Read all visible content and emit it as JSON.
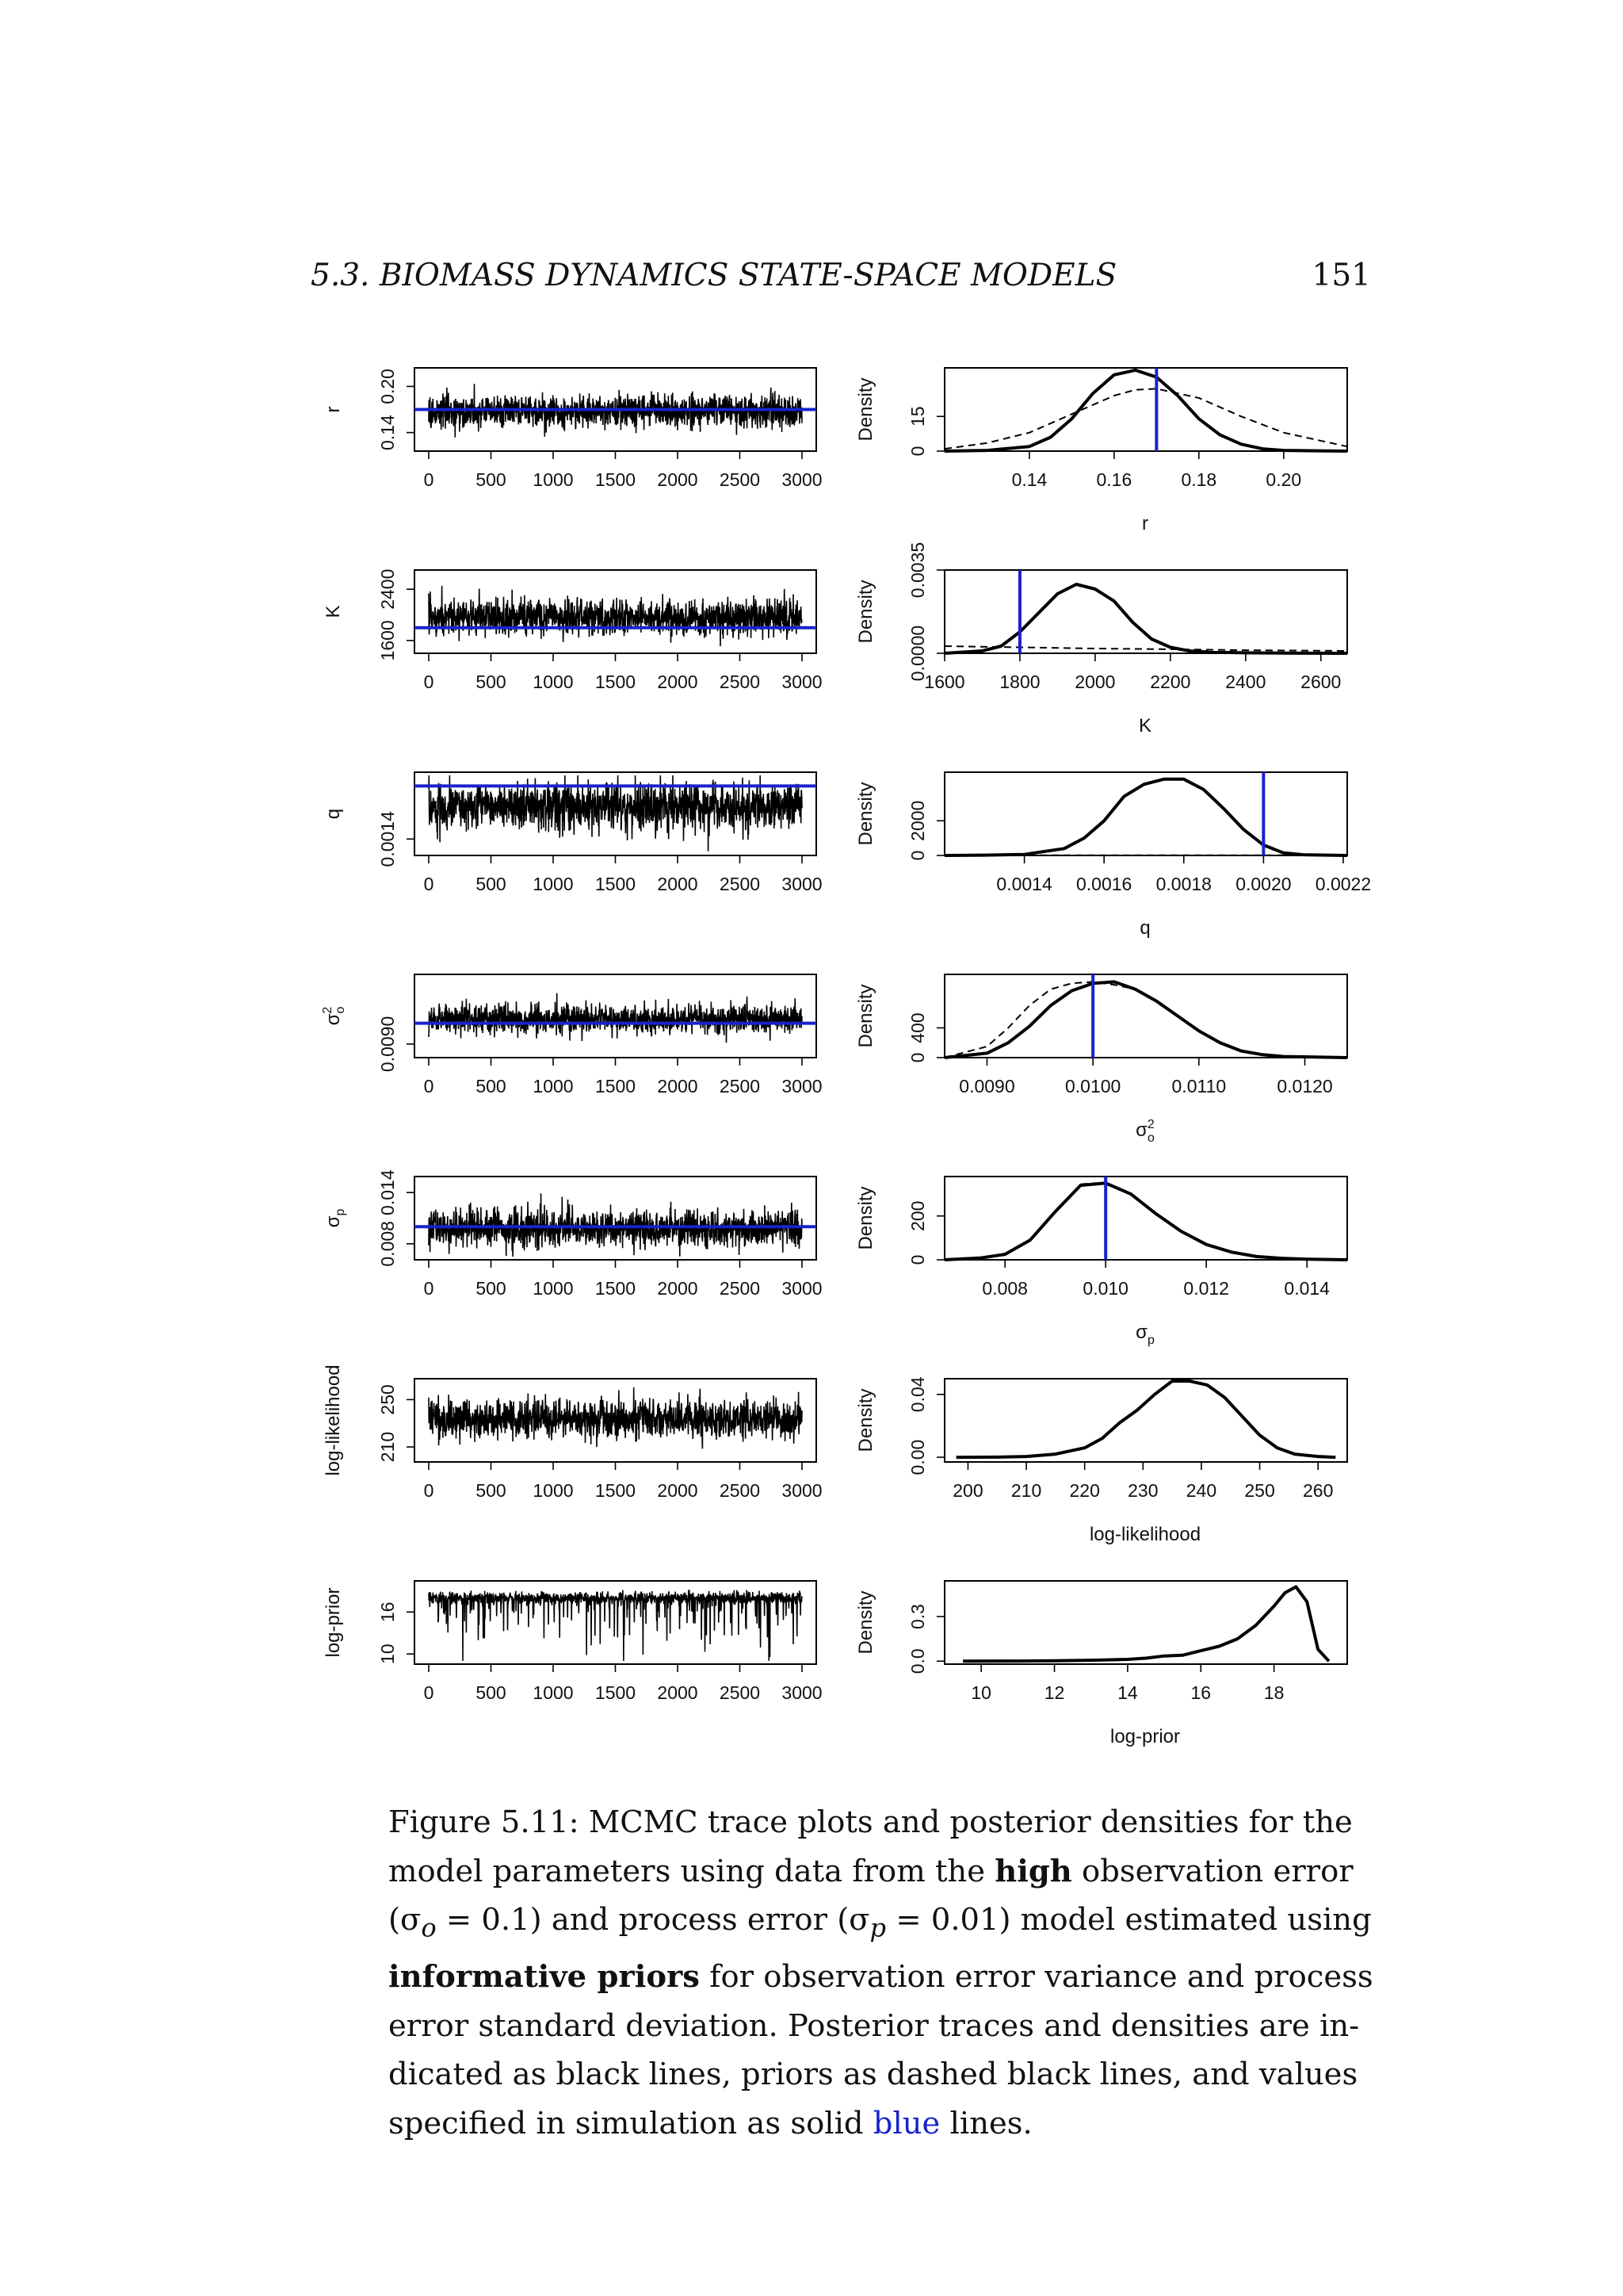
{
  "header": {
    "section": "5.3.  BIOMASS DYNAMICS STATE-SPACE MODELS",
    "page_number": "151"
  },
  "caption": {
    "lines": [
      [
        "Figure 5.11: MCMC trace plots and posterior densities for the"
      ],
      [
        "model parameters using data from the ",
        "high",
        " observation error"
      ],
      [
        "(σ",
        "o",
        " = 0.1) and process error (σ",
        "p",
        " = 0.01) model estimated using"
      ],
      [
        "informative priors",
        " for observation error variance and process"
      ],
      [
        "error standard deviation. Posterior traces and densities are in-"
      ],
      [
        "dicated as black lines, priors as dashed black lines, and values"
      ],
      [
        "specified in simulation as solid ",
        "blue",
        " lines."
      ]
    ]
  },
  "colors": {
    "truth_line": "#1a22cc",
    "posterior_line": "#000000",
    "prior_line": "#000000"
  },
  "chart_data": [
    {
      "type": "line",
      "kind": "trace",
      "parameter": "r",
      "ylabel": "r",
      "yticks": [
        "0.14",
        "0.20"
      ],
      "ylim": [
        0.12,
        0.22
      ],
      "xticks": [
        "0",
        "500",
        "1000",
        "1500",
        "2000",
        "2500",
        "3000"
      ],
      "xlim": [
        0,
        3000
      ],
      "trace_center": 0.168,
      "trace_spread": 0.011,
      "truth": 0.17
    },
    {
      "type": "line",
      "kind": "density",
      "parameter": "r",
      "xlabel": "r",
      "ylabel": "Density",
      "yticks": [
        "0",
        "15"
      ],
      "ylim": [
        0,
        36
      ],
      "xticks": [
        "0.14",
        "0.16",
        "0.18",
        "0.20"
      ],
      "xlim": [
        0.12,
        0.215
      ],
      "posterior": {
        "x": [
          0.12,
          0.13,
          0.14,
          0.145,
          0.15,
          0.155,
          0.16,
          0.165,
          0.17,
          0.175,
          0.18,
          0.185,
          0.19,
          0.195,
          0.2,
          0.215
        ],
        "y": [
          0,
          0.3,
          2,
          6,
          14,
          25,
          33,
          35,
          32,
          24,
          14,
          7,
          3,
          1,
          0.3,
          0
        ]
      },
      "prior": {
        "x": [
          0.12,
          0.13,
          0.14,
          0.15,
          0.16,
          0.165,
          0.17,
          0.18,
          0.19,
          0.2,
          0.215
        ],
        "y": [
          1,
          3.5,
          8,
          16,
          24,
          26.5,
          27,
          23,
          15,
          8,
          2
        ]
      },
      "truth": 0.17
    },
    {
      "type": "line",
      "kind": "trace",
      "parameter": "K",
      "ylabel": "K",
      "yticks": [
        "1600",
        "2400"
      ],
      "ylim": [
        1450,
        2650
      ],
      "xticks": [
        "0",
        "500",
        "1000",
        "1500",
        "2000",
        "2500",
        "3000"
      ],
      "xlim": [
        0,
        3000
      ],
      "trace_center": 1960,
      "trace_spread": 140,
      "truth": 1800
    },
    {
      "type": "line",
      "kind": "density",
      "parameter": "K",
      "xlabel": "K",
      "ylabel": "Density",
      "yticks": [
        "0.0000",
        "0.0035"
      ],
      "ylim": [
        0,
        0.0035
      ],
      "xticks": [
        "1600",
        "1800",
        "2000",
        "2200",
        "2400",
        "2600"
      ],
      "xlim": [
        1600,
        2670
      ],
      "posterior": {
        "x": [
          1600,
          1700,
          1750,
          1800,
          1850,
          1900,
          1950,
          2000,
          2050,
          2100,
          2150,
          2200,
          2250,
          2300,
          2400,
          2500,
          2670
        ],
        "y": [
          0,
          0.0001,
          0.0003,
          0.0009,
          0.0017,
          0.0025,
          0.0029,
          0.0027,
          0.0022,
          0.0013,
          0.0006,
          0.00025,
          0.0001,
          5e-05,
          2e-05,
          1e-05,
          0
        ]
      },
      "prior": {
        "x": [
          1600,
          1800,
          2000,
          2200,
          2400,
          2670
        ],
        "y": [
          0.0003,
          0.00025,
          0.0002,
          0.00017,
          0.00013,
          0.0001
        ]
      },
      "truth": 1800
    },
    {
      "type": "line",
      "kind": "trace",
      "parameter": "q",
      "ylabel": "q",
      "yticks": [
        "0.0014"
      ],
      "ylim": [
        0.00125,
        0.00212
      ],
      "xticks": [
        "0",
        "500",
        "1000",
        "1500",
        "2000",
        "2500",
        "3000"
      ],
      "xlim": [
        0,
        3000
      ],
      "trace_center": 0.00177,
      "trace_spread": 0.00013,
      "truth": 0.002
    },
    {
      "type": "line",
      "kind": "density",
      "parameter": "q",
      "xlabel": "q",
      "ylabel": "Density",
      "yticks": [
        "0",
        "2000"
      ],
      "ylim": [
        0,
        4800
      ],
      "xticks": [
        "0.0014",
        "0.0016",
        "0.0018",
        "0.0020",
        "0.0022"
      ],
      "xlim": [
        0.0012,
        0.00221
      ],
      "posterior": {
        "x": [
          0.0012,
          0.0013,
          0.0014,
          0.0015,
          0.00155,
          0.0016,
          0.00165,
          0.0017,
          0.00175,
          0.0018,
          0.00185,
          0.0019,
          0.00195,
          0.002,
          0.00205,
          0.0021,
          0.00221
        ],
        "y": [
          0,
          20,
          60,
          400,
          1000,
          2000,
          3400,
          4100,
          4400,
          4400,
          3800,
          2700,
          1500,
          600,
          150,
          40,
          0
        ]
      },
      "prior": {
        "x": [
          0.0012,
          0.0016,
          0.002,
          0.00221
        ],
        "y": [
          12,
          12,
          12,
          12
        ]
      },
      "truth": 0.002
    },
    {
      "type": "line",
      "kind": "trace",
      "parameter": "σo²",
      "ylabel": "σo²",
      "yticks": [
        "0.0090"
      ],
      "ylim": [
        0.0085,
        0.0122
      ],
      "xticks": [
        "0",
        "500",
        "1000",
        "1500",
        "2000",
        "2500",
        "3000"
      ],
      "xlim": [
        0,
        3000
      ],
      "trace_center": 0.0102,
      "trace_spread": 0.00035,
      "truth": 0.01
    },
    {
      "type": "line",
      "kind": "density",
      "parameter": "σo²",
      "xlabel": "σo²",
      "ylabel": "Density",
      "yticks": [
        "0",
        "400"
      ],
      "ylim": [
        0,
        1120
      ],
      "xticks": [
        "0.0090",
        "0.0100",
        "0.0110",
        "0.0120"
      ],
      "xlim": [
        0.0086,
        0.0124
      ],
      "posterior": {
        "x": [
          0.0086,
          0.009,
          0.0092,
          0.0094,
          0.0096,
          0.0098,
          0.01,
          0.0102,
          0.0104,
          0.0106,
          0.0108,
          0.011,
          0.0112,
          0.0114,
          0.0116,
          0.0118,
          0.0124
        ],
        "y": [
          0,
          60,
          200,
          420,
          700,
          900,
          1000,
          1020,
          920,
          760,
          560,
          360,
          200,
          90,
          40,
          15,
          0
        ]
      },
      "prior": {
        "x": [
          0.0086,
          0.009,
          0.0092,
          0.0094,
          0.0096,
          0.0098,
          0.01,
          0.0102,
          0.0104
        ],
        "y": [
          0,
          150,
          400,
          700,
          920,
          1000,
          1020,
          980,
          920
        ]
      },
      "truth": 0.01
    },
    {
      "type": "line",
      "kind": "trace",
      "parameter": "σp",
      "ylabel": "σp",
      "yticks": [
        "0.008",
        "0.014"
      ],
      "ylim": [
        0.0065,
        0.0155
      ],
      "xticks": [
        "0",
        "500",
        "1000",
        "1500",
        "2000",
        "2500",
        "3000"
      ],
      "xlim": [
        0,
        3000
      ],
      "trace_center": 0.0098,
      "trace_spread": 0.0011,
      "truth": 0.01
    },
    {
      "type": "line",
      "kind": "density",
      "parameter": "σp",
      "xlabel": "σp",
      "ylabel": "Density",
      "yticks": [
        "0",
        "200"
      ],
      "ylim": [
        0,
        380
      ],
      "xticks": [
        "0.008",
        "0.010",
        "0.012",
        "0.014"
      ],
      "xlim": [
        0.0068,
        0.0148
      ],
      "posterior": {
        "x": [
          0.0068,
          0.0075,
          0.008,
          0.0085,
          0.009,
          0.0095,
          0.01,
          0.0105,
          0.011,
          0.0115,
          0.012,
          0.0125,
          0.013,
          0.0135,
          0.014,
          0.0148
        ],
        "y": [
          0,
          8,
          25,
          90,
          220,
          340,
          350,
          300,
          210,
          130,
          70,
          35,
          15,
          7,
          3,
          0
        ]
      },
      "prior": {
        "x": [
          0.0095,
          0.0098,
          0.01,
          0.0102
        ],
        "y": [
          345,
          350,
          345,
          330
        ]
      },
      "truth": 0.01
    },
    {
      "type": "line",
      "kind": "trace",
      "parameter": "log-likelihood",
      "ylabel": "log-likelihood",
      "yticks": [
        "210",
        "250"
      ],
      "ylim": [
        200,
        265
      ],
      "xticks": [
        "0",
        "500",
        "1000",
        "1500",
        "2000",
        "2500",
        "3000"
      ],
      "xlim": [
        0,
        3000
      ],
      "trace_center": 234,
      "trace_spread": 8
    },
    {
      "type": "line",
      "kind": "density",
      "parameter": "log-likelihood",
      "xlabel": "log-likelihood",
      "ylabel": "Density",
      "yticks": [
        "0.00",
        "0.04"
      ],
      "ylim": [
        -0.003,
        0.05
      ],
      "xticks": [
        "200",
        "210",
        "220",
        "230",
        "240",
        "250",
        "260"
      ],
      "xlim": [
        196,
        265
      ],
      "posterior": {
        "x": [
          198,
          205,
          210,
          215,
          220,
          223,
          226,
          229,
          232,
          235,
          238,
          241,
          244,
          247,
          250,
          253,
          256,
          260,
          263
        ],
        "y": [
          0,
          0.0001,
          0.0005,
          0.002,
          0.006,
          0.012,
          0.022,
          0.03,
          0.04,
          0.0485,
          0.0485,
          0.046,
          0.038,
          0.026,
          0.014,
          0.006,
          0.002,
          0.0005,
          0
        ]
      }
    },
    {
      "type": "line",
      "kind": "trace",
      "parameter": "log-prior",
      "ylabel": "log-prior",
      "yticks": [
        "10",
        "16"
      ],
      "ylim": [
        9,
        20
      ],
      "xticks": [
        "0",
        "500",
        "1000",
        "1500",
        "2000",
        "2500",
        "3000"
      ],
      "xlim": [
        0,
        3000
      ],
      "trace_center": 18,
      "trace_spread": 1.2
    },
    {
      "type": "line",
      "kind": "density",
      "parameter": "log-prior",
      "xlabel": "log-prior",
      "ylabel": "Density",
      "yticks": [
        "0.0",
        "0.3"
      ],
      "ylim": [
        -0.02,
        0.54
      ],
      "xticks": [
        "10",
        "12",
        "14",
        "16",
        "18"
      ],
      "xlim": [
        9,
        20
      ],
      "posterior": {
        "x": [
          9.5,
          11,
          12,
          13,
          14,
          14.5,
          15,
          15.5,
          16,
          16.5,
          17,
          17.5,
          18,
          18.3,
          18.6,
          18.9,
          19.2,
          19.5
        ],
        "y": [
          0,
          0.001,
          0.003,
          0.006,
          0.012,
          0.02,
          0.035,
          0.04,
          0.07,
          0.1,
          0.15,
          0.24,
          0.37,
          0.46,
          0.5,
          0.4,
          0.08,
          0
        ]
      }
    }
  ]
}
